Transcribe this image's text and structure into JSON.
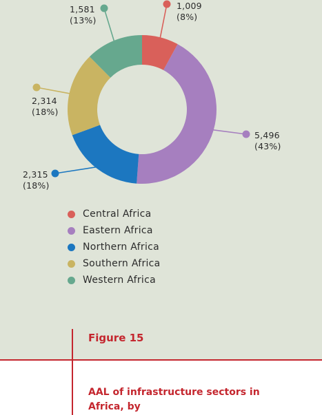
{
  "colors": {
    "background": "#dfe4d8",
    "accent": "#c4262e"
  },
  "chart_data": {
    "type": "pie",
    "style": "donut",
    "title": "",
    "series": [
      {
        "name": "Central Africa",
        "value": 1009,
        "value_label": "1,009",
        "percent_label": "(8%)",
        "color": "#d9605a"
      },
      {
        "name": "Eastern Africa",
        "value": 5496,
        "value_label": "5,496",
        "percent_label": "(43%)",
        "color": "#a67fbf"
      },
      {
        "name": "Northern Africa",
        "value": 2315,
        "value_label": "2,315",
        "percent_label": "(18%)",
        "color": "#1c77c0"
      },
      {
        "name": "Southern Africa",
        "value": 2314,
        "value_label": "2,314",
        "percent_label": "(18%)",
        "color": "#c9b462"
      },
      {
        "name": "Western Africa",
        "value": 1581,
        "value_label": "1,581",
        "percent_label": "(13%)",
        "color": "#66a88e"
      }
    ],
    "legend_position": "bottom"
  },
  "figure": {
    "label": "Figure 15",
    "caption": "AAL of infrastructure sectors in Africa, by"
  }
}
